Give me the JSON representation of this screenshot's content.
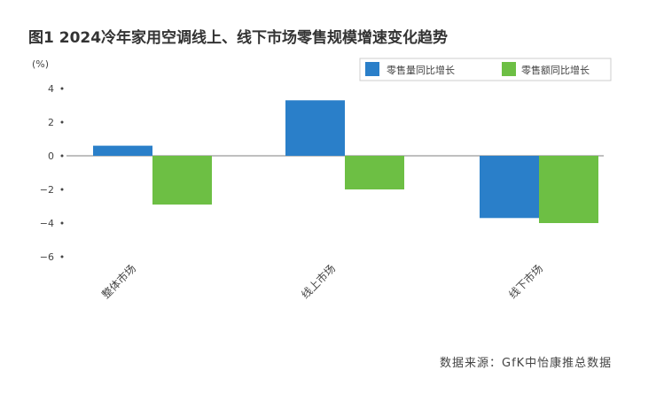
{
  "chart_data": {
    "type": "bar",
    "title": "图1  2024冷年家用空调线上、线下市场零售规模增速变化趋势",
    "ylabel": "(%)",
    "xlabel": "",
    "categories": [
      "整体市场",
      "线上市场",
      "线下市场"
    ],
    "series": [
      {
        "name": "零售量同比增长",
        "color": "#2a7fc9",
        "values": [
          0.6,
          3.3,
          -3.7
        ]
      },
      {
        "name": "零售额同比增长",
        "color": "#6dbf44",
        "values": [
          -2.9,
          -2.0,
          -4.0
        ]
      }
    ],
    "ylim": [
      -6,
      4
    ],
    "yticks": [
      4,
      2,
      0,
      -2,
      -4,
      -6
    ],
    "ytick_labels": [
      "4",
      "2",
      "0",
      "−2",
      "−4",
      "−6"
    ],
    "grid": false,
    "legend_position": "top-right",
    "source": "数据来源：GfK中怡康推总数据"
  }
}
